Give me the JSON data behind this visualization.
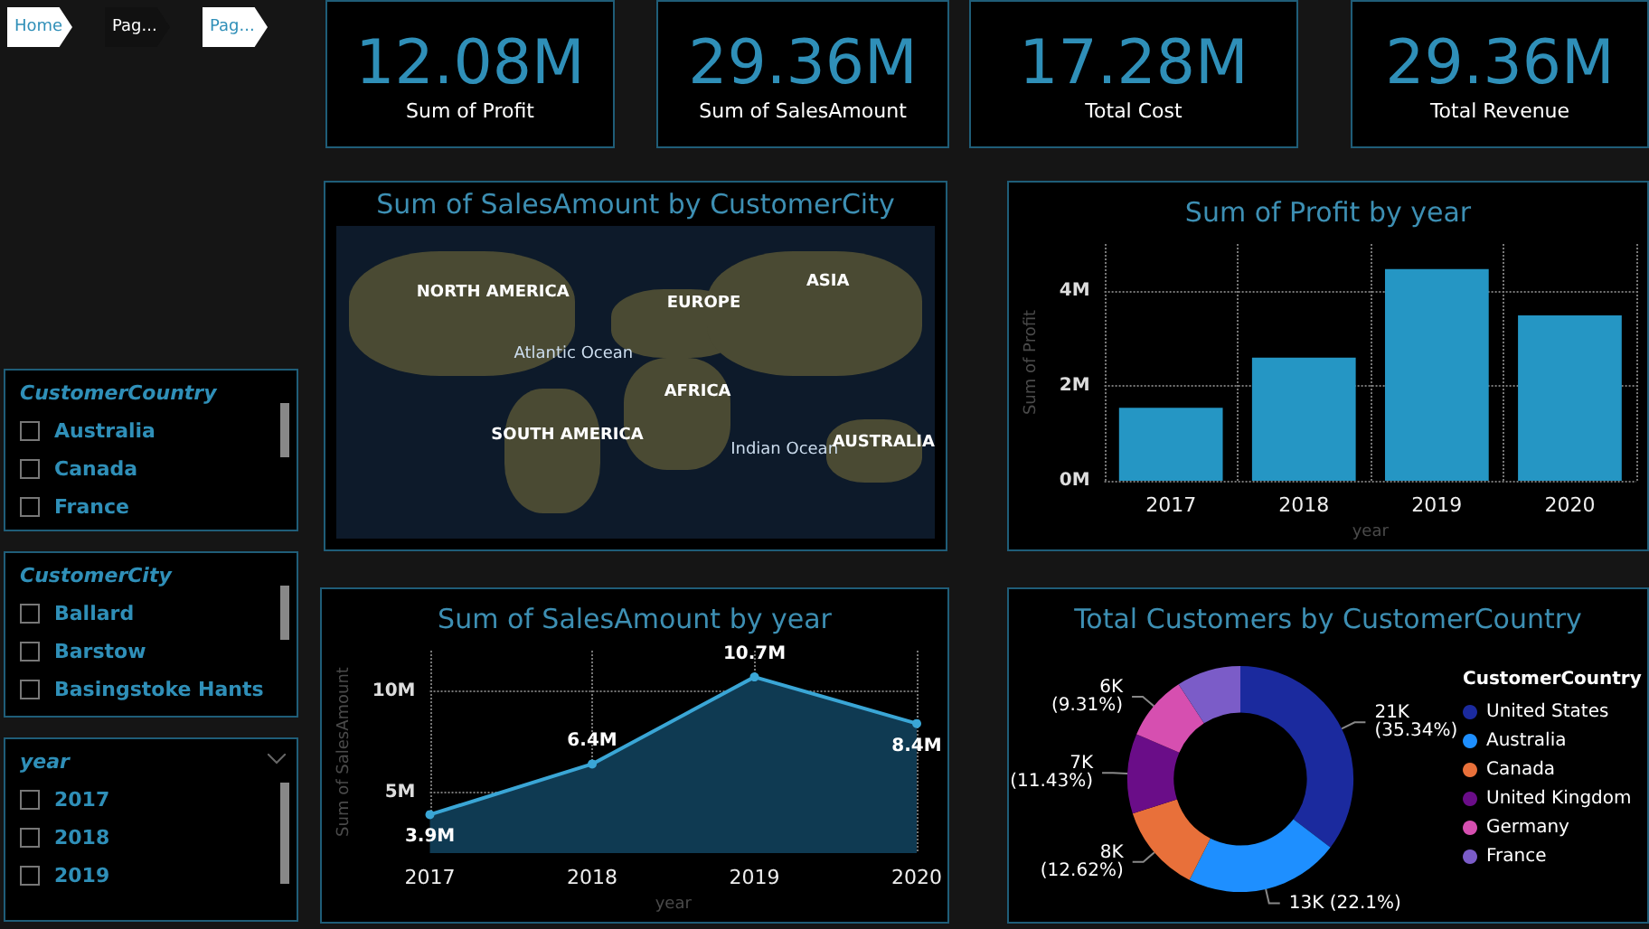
{
  "chart_data": [
    {
      "type": "other",
      "annotations": [
        "Home",
        "Pag...",
        "Pag..."
      ]
    },
    {
      "type": "other",
      "title": "Sum of Profit",
      "annotations": [
        "12.08M"
      ]
    },
    {
      "type": "other",
      "title": "Sum of SalesAmount",
      "annotations": [
        "29.36M"
      ]
    },
    {
      "type": "other",
      "title": "Total Cost",
      "annotations": [
        "17.28M"
      ]
    },
    {
      "type": "other",
      "title": "Total Revenue",
      "annotations": [
        "29.36M"
      ]
    },
    {
      "type": "other",
      "title": "Sum of SalesAmount by CustomerCity",
      "annotations": [
        "NORTH AMERICA",
        "EUROPE",
        "ASIA",
        "Atlantic Ocean",
        "AFRICA",
        "SOUTH AMERICA",
        "Indian Ocean",
        "AUSTRALIA"
      ]
    },
    {
      "type": "bar",
      "title": "Sum of Profit by year",
      "xlabel": "year",
      "ylabel": "Sum of Profit",
      "categories": [
        "2017",
        "2018",
        "2019",
        "2020"
      ],
      "values": [
        1.54,
        2.6,
        4.47,
        3.49
      ],
      "color": "#2596c4",
      "ylim": [
        0,
        5
      ],
      "yticks": [
        {
          "value": 0,
          "label": "0M"
        },
        {
          "value": 2,
          "label": "2M"
        },
        {
          "value": 4,
          "label": "4M"
        }
      ],
      "grid": true
    },
    {
      "type": "other",
      "title": "CustomerCountry",
      "annotations": [
        "Australia",
        "Canada",
        "France"
      ]
    },
    {
      "type": "other",
      "title": "CustomerCity",
      "annotations": [
        "Ballard",
        "Barstow",
        "Basingstoke Hants"
      ]
    },
    {
      "type": "other",
      "title": "year",
      "annotations": [
        "2017",
        "2018",
        "2019"
      ]
    },
    {
      "type": "area",
      "title": "Sum of SalesAmount by year",
      "xlabel": "year",
      "ylabel": "Sum of SalesAmount",
      "categories": [
        "2017",
        "2018",
        "2019",
        "2020"
      ],
      "values": [
        3.9,
        6.4,
        10.7,
        8.4
      ],
      "value_labels": [
        "3.9M",
        "6.4M",
        "10.7M",
        "8.4M"
      ],
      "color": "#3aa6d6",
      "ylim": [
        2,
        12
      ],
      "yticks": [
        {
          "value": 5,
          "label": "5M"
        },
        {
          "value": 10,
          "label": "10M"
        }
      ],
      "grid": true,
      "marker": "circle"
    },
    {
      "type": "donut",
      "title": "Total Customers by CustomerCountry",
      "legend_title": "CustomerCountry",
      "legend": "right",
      "categories": [
        "United States",
        "Australia",
        "Canada",
        "United Kingdom",
        "Germany",
        "France"
      ],
      "values": [
        35.34,
        22.1,
        12.62,
        11.43,
        9.31,
        9.2
      ],
      "value_labels": [
        "21K\n(35.34%)",
        "13K (22.1%)",
        "8K\n(12.62%)",
        "7K\n(11.43%)",
        "6K\n(9.31%)",
        null
      ],
      "colors": [
        "#1b2a9e",
        "#1e8fff",
        "#e8703a",
        "#6a0d88",
        "#d64fb0",
        "#7b5cc8"
      ]
    }
  ]
}
